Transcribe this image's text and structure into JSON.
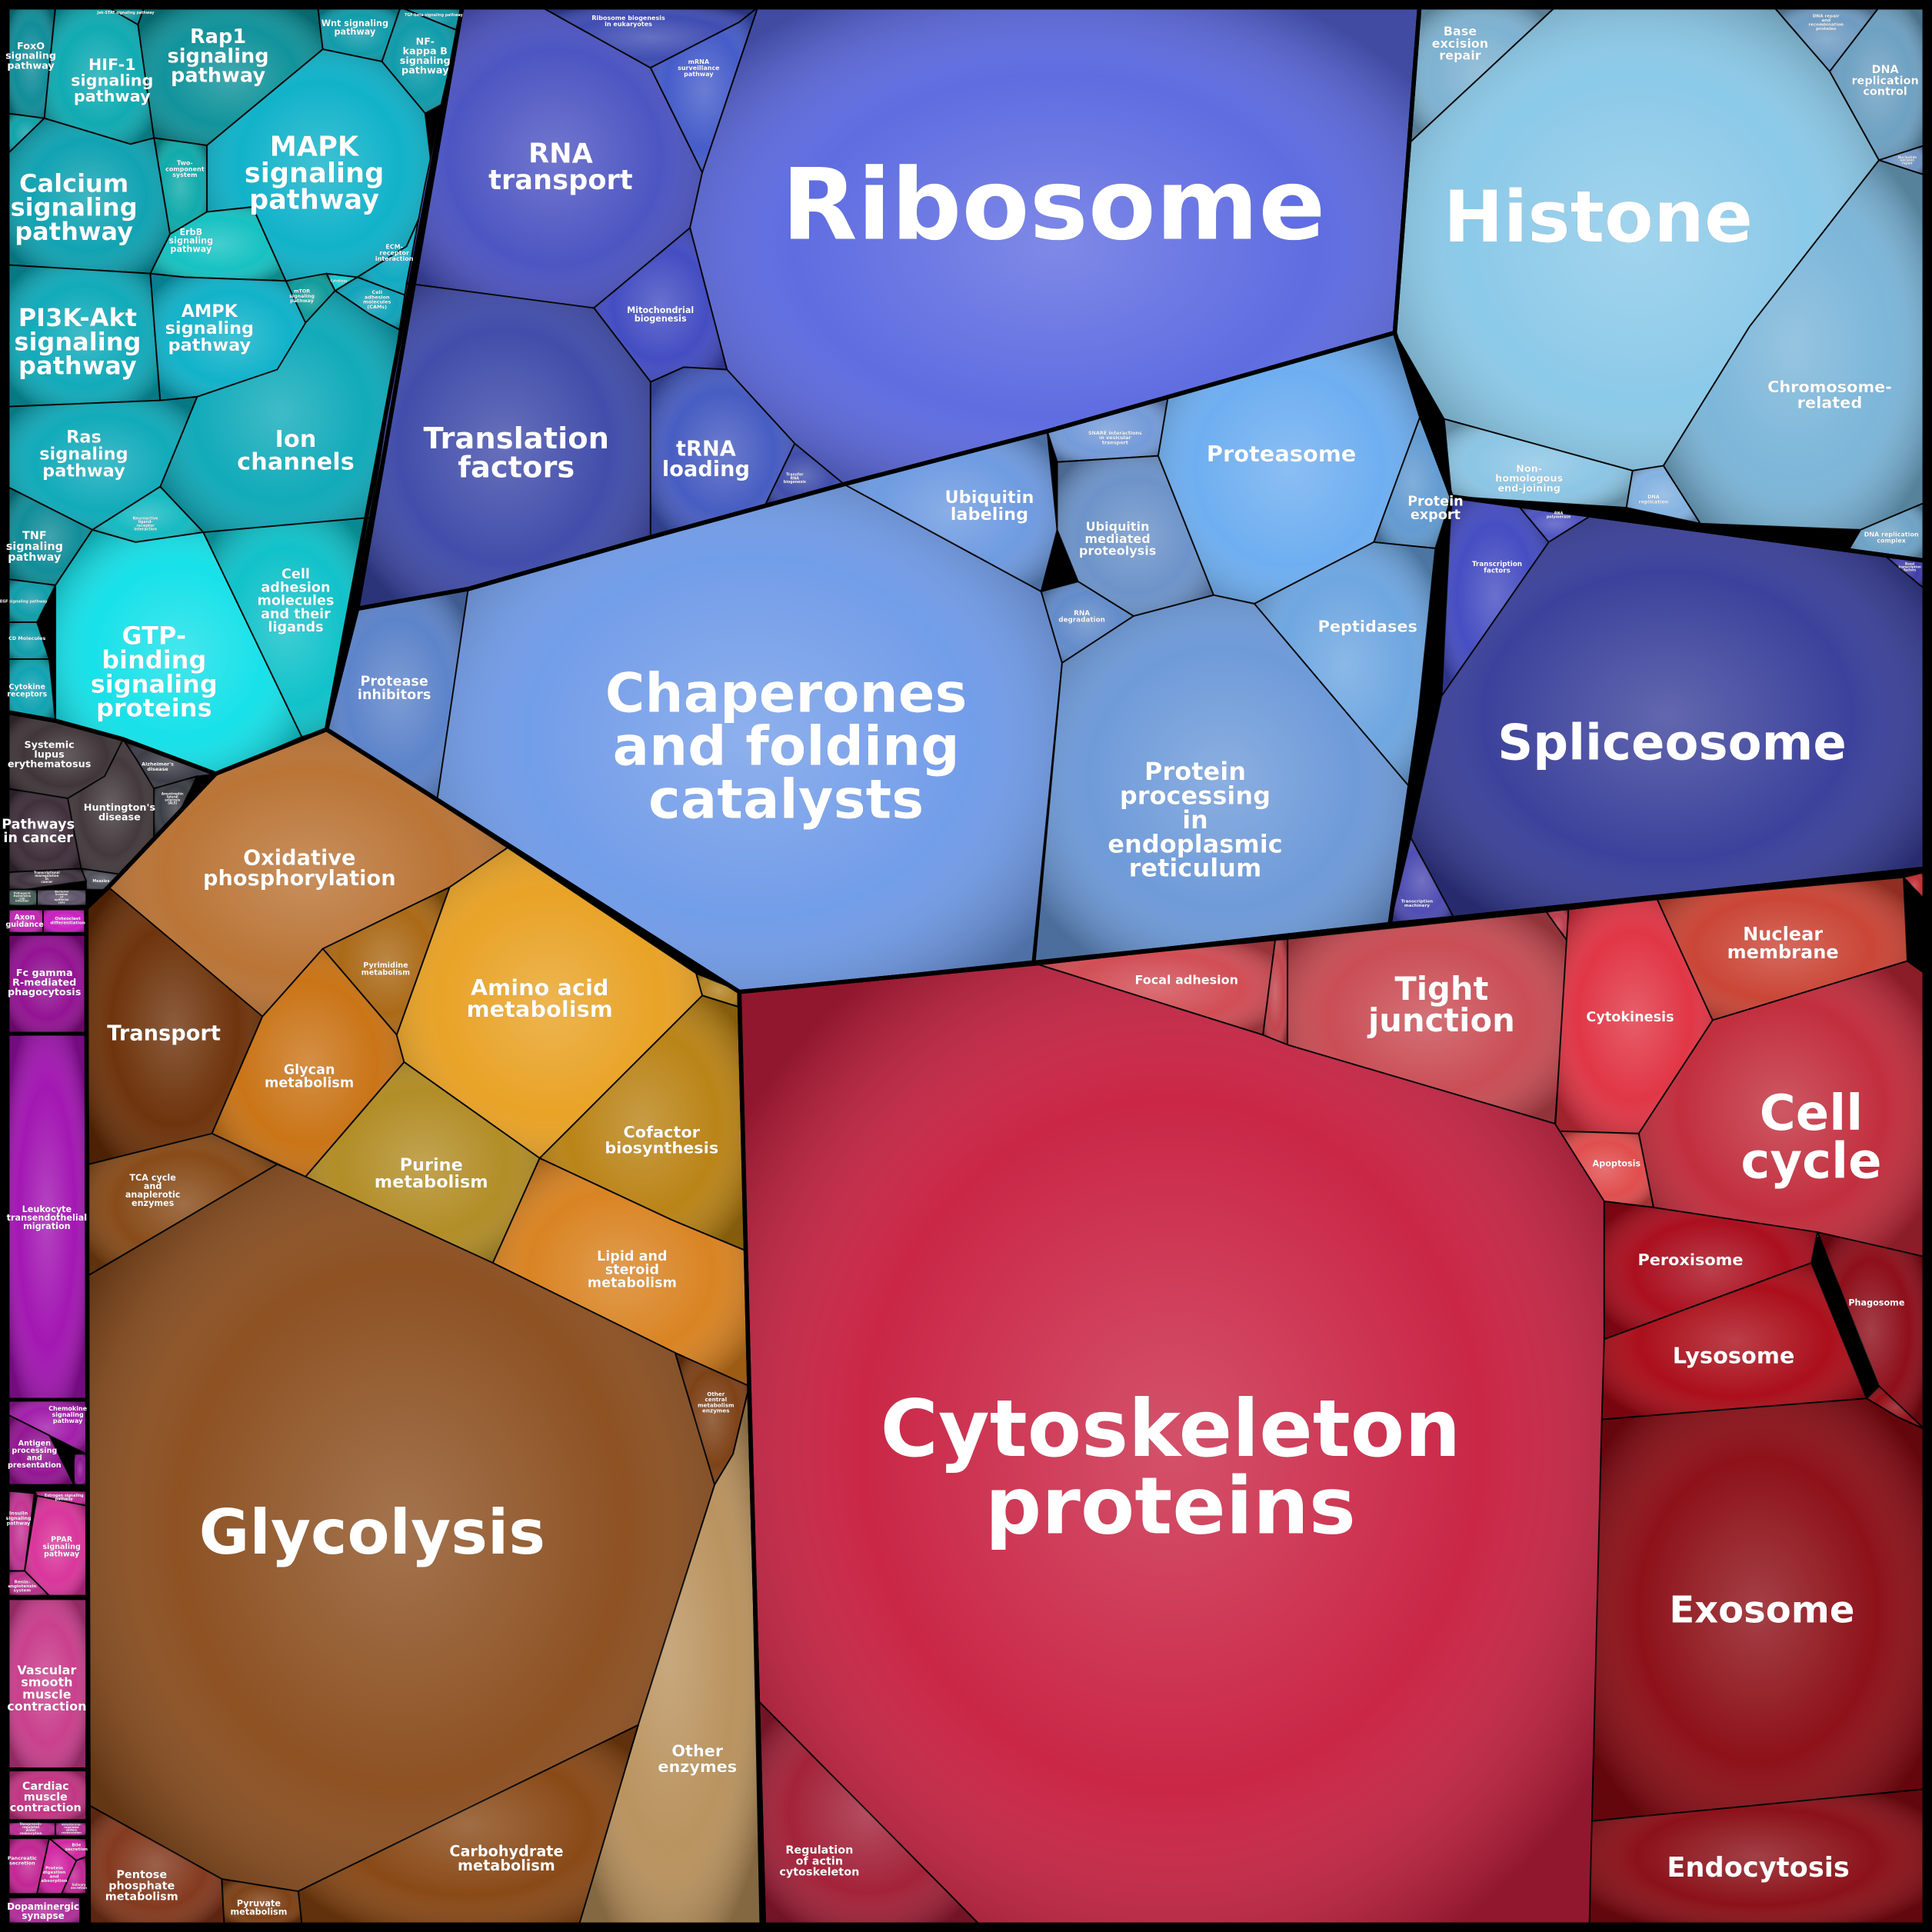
{
  "frame_color": "#000000",
  "cells": [
    {
      "label": "FoxO\nsignaling\npathway",
      "color": "#0a8a96"
    },
    {
      "label": "",
      "color": "#0aa0a8"
    },
    {
      "label": "HIF-1\nsignaling\npathway",
      "color": "#0aa8b0"
    },
    {
      "label": "Jak-STAT signaling pathway",
      "color": "#0a8a96"
    },
    {
      "label": "Rap1\nsignaling\npathway",
      "color": "#0a9098"
    },
    {
      "label": "Wnt signaling\npathway",
      "color": "#0a98a8"
    },
    {
      "label": "TGF-beta signaling pathway",
      "color": "#0a90a0"
    },
    {
      "label": "NF-\nkappa B\nsignaling\npathway",
      "color": "#0a98a8"
    },
    {
      "label": "Calcium\nsignaling\npathway",
      "color": "#0aa0b0"
    },
    {
      "label": "Two-\ncomponent\nsystem",
      "color": "#0aa8a8"
    },
    {
      "label": "MAPK\nsignaling\npathway",
      "color": "#0ab0c8"
    },
    {
      "label": "ErbB\nsignaling\npathway",
      "color": "#10c0c0"
    },
    {
      "label": "PI3K-Akt\nsignaling\npathway",
      "color": "#0aa8b8"
    },
    {
      "label": "AMPK\nsignaling\npathway",
      "color": "#0ab0c8"
    },
    {
      "label": "mTOR\nsignaling\npathway",
      "color": "#0a9898"
    },
    {
      "label": "Cytokines",
      "color": "#10c8d0"
    },
    {
      "label": "ECM-\nreceptor\ninteraction",
      "color": "#0aa8c0"
    },
    {
      "label": "Cell\nadhesion\nmolecules\n(CAMs)",
      "color": "#0aa0b8"
    },
    {
      "label": "Ion\nchannels",
      "color": "#0aa8b8"
    },
    {
      "label": "Ras\nsignaling\npathway",
      "color": "#0aa8b8"
    },
    {
      "label": "TNF\nsignaling\npathway",
      "color": "#0a8a96"
    },
    {
      "label": "Neuroactive ligand-receptor interaction",
      "color": "#10b8c0"
    },
    {
      "label": "GTP-\nbinding\nsignaling\nproteins",
      "color": "#10e0e8"
    },
    {
      "label": "Cell\nadhesion\nmolecules\nand their\nligands",
      "color": "#0ac0c8"
    },
    {
      "label": "VEGF signaling pathway",
      "color": "#0a9aa8"
    },
    {
      "label": "CD Molecules",
      "color": "#0a9aa8"
    },
    {
      "label": "Cytokine\nreceptors",
      "color": "#0aa0b0"
    },
    {
      "label": "Systemic\nlupus\nerythematosus",
      "color": "#3a3034"
    },
    {
      "label": "Pathways\nin cancer",
      "color": "#3a2a36"
    },
    {
      "label": "Huntington's\ndisease",
      "color": "#3e3438"
    },
    {
      "label": "Alzheimer's\ndisease",
      "color": "#383844"
    },
    {
      "label": "Amyotrophic lateral sclerosis (ALS)",
      "color": "#363a40"
    },
    {
      "label": "Transcriptional misregulation in cancer",
      "color": "#3a2e3a"
    },
    {
      "label": "Measles",
      "color": "#4a4a56"
    },
    {
      "label": "Bacterial invasion of epithelial cells",
      "color": "#5a5064"
    },
    {
      "label": "Pathogenic Escherichia coli infection",
      "color": "#445a55"
    },
    {
      "label": "Axon\nguidance",
      "color": "#c020b0"
    },
    {
      "label": "Osteoclast differentiation",
      "color": "#c818c0"
    },
    {
      "label": "Fc gamma\nR-mediated\nphagocytosis",
      "color": "#900c90"
    },
    {
      "label": "Leukocyte\ntransendothelial\nmigration",
      "color": "#a010b0"
    },
    {
      "label": "Chemokine\nsignaling\npathway",
      "color": "#a018a8"
    },
    {
      "label": "Antigen\nprocessing\nand\npresentation",
      "color": "#901090"
    },
    {
      "label": "",
      "color": "#8a1090"
    },
    {
      "label": "Insulin\nsignaling\npathway",
      "color": "#c03090"
    },
    {
      "label": "Estrogen signaling\npathway",
      "color": "#c02890"
    },
    {
      "label": "PPAR\nsignaling\npathway",
      "color": "#d83098"
    },
    {
      "label": "Renin-\nangiotensin\nsystem",
      "color": "#b82888"
    },
    {
      "label": "Vascular\nsmooth\nmuscle\ncontraction",
      "color": "#c83a8a"
    },
    {
      "label": "Cardiac\nmuscle\ncontraction",
      "color": "#c03080"
    },
    {
      "label": "Vasopressin-regulated\nwater reabsorption",
      "color": "#b82890"
    },
    {
      "label": "Aldosterone-regulated\nsodium reabsorption",
      "color": "#b02890"
    },
    {
      "label": "Pancreatic\nsecretion",
      "color": "#c02090"
    },
    {
      "label": "Protein\ndigestion\nand\nabsorption",
      "color": "#d020a0"
    },
    {
      "label": "Bile\nsecretion",
      "color": "#d020a0"
    },
    {
      "label": "Salivary\nsecretion",
      "color": "#c02090"
    },
    {
      "label": "Dopaminergic\nsynapse",
      "color": "#b02898"
    },
    {
      "label": "Oxidative\nphosphorylation",
      "color": "#b87030"
    },
    {
      "label": "Transport",
      "color": "#6a2e05"
    },
    {
      "label": "Pyrimidine\nmetabolism",
      "color": "#a86510"
    },
    {
      "label": "Glycan\nmetabolism",
      "color": "#c87010"
    },
    {
      "label": "Amino acid\nmetabolism",
      "color": "#e8a020"
    },
    {
      "label": "",
      "color": "#b08020"
    },
    {
      "label": "Cofactor\nbiosynthesis",
      "color": "#b88010"
    },
    {
      "label": "Purine\nmetabolism",
      "color": "#b08a20"
    },
    {
      "label": "Lipid and\nsteroid\nmetabolism",
      "color": "#d8801c"
    },
    {
      "label": "TCA cycle\nand\nanaplerotic\nenzymes",
      "color": "#844612"
    },
    {
      "label": "Glycolysis",
      "color": "#8a4c1c"
    },
    {
      "label": "Other\ncentral\nmetabolism\nenzymes",
      "color": "#7a3c10"
    },
    {
      "label": "Other\nenzymes",
      "color": "#b8905a"
    },
    {
      "label": "Carbohydrate\nmetabolism",
      "color": "#864410"
    },
    {
      "label": "Pentose\nphosphate\nmetabolism",
      "color": "#803418"
    },
    {
      "label": "Pyruvate\nmetabolism",
      "color": "#7a3c10"
    },
    {
      "label": "RNA\ntransport",
      "color": "#4850c0"
    },
    {
      "label": "Ribosome biogenesis\nin eukaryotes",
      "color": "#3a48b0"
    },
    {
      "label": "mRNA\nsurveillance\npathway",
      "color": "#4058c8"
    },
    {
      "label": "Ribosome",
      "color": "#5a68e0"
    },
    {
      "label": "Mitochondrial\nbiogenesis",
      "color": "#3e48c0"
    },
    {
      "label": "Translation\nfactors",
      "color": "#3c48a8"
    },
    {
      "label": "tRNA\nloading",
      "color": "#4258c0"
    },
    {
      "label": "Transfer\nRNA\nbiogenesis",
      "color": "#3a48a8"
    },
    {
      "label": "Transcription\nfactors",
      "color": "#4048c0"
    },
    {
      "label": "RNA\npolymerase",
      "color": "#4a50c0"
    },
    {
      "label": "Spliceosome",
      "color": "#363c98"
    },
    {
      "label": "Transcription\nmachinery",
      "color": "#4a48b0"
    },
    {
      "label": "Basal\ntranscription\nfactors",
      "color": "#3a38a8"
    },
    {
      "label": "Base\nexcision\nrepair",
      "color": "#7ab0d0"
    },
    {
      "label": "Histone",
      "color": "#88c8e8"
    },
    {
      "label": "DNA repair\nand\nrecombination\nproteins",
      "color": "#6a98c0"
    },
    {
      "label": "DNA\nreplication\ncontrol",
      "color": "#6a9ec0"
    },
    {
      "label": "Nucleotide\nexcision\nrepair",
      "color": "#6a90c0"
    },
    {
      "label": "Chromosome-\nrelated",
      "color": "#78b4d8"
    },
    {
      "label": "Non-\nhomologous\nend-joining",
      "color": "#88c4e4"
    },
    {
      "label": "DNA\nreplication",
      "color": "#80b0e0"
    },
    {
      "label": "DNA replication\ncomplex",
      "color": "#6aa0c4"
    },
    {
      "label": "Protease\ninhibitors",
      "color": "#5880c8"
    },
    {
      "label": "Chaperones\nand folding\ncatalysts",
      "color": "#6e9ae8"
    },
    {
      "label": "Ubiquitin\nlabeling",
      "color": "#6a98e0"
    },
    {
      "label": "SNARE interactions\nin vesicular\ntransport",
      "color": "#7098d8"
    },
    {
      "label": "Ubiquitin\nmediated\nproteolysis",
      "color": "#6890c8"
    },
    {
      "label": "RNA\ndegradation",
      "color": "#5e88c8"
    },
    {
      "label": "Proteasome",
      "color": "#6aacf0"
    },
    {
      "label": "Protein\nexport",
      "color": "#5e98d0"
    },
    {
      "label": "Peptidases",
      "color": "#6aa4e0"
    },
    {
      "label": "Protein\nprocessing\nin\nendoplasmic\nreticulum",
      "color": "#6a98d8"
    },
    {
      "label": "Focal adhesion",
      "color": "#d04850"
    },
    {
      "label": "",
      "color": "#c04048"
    },
    {
      "label": "Tight\njunction",
      "color": "#c84850"
    },
    {
      "label": "",
      "color": "#b83848"
    },
    {
      "label": "Cytokinesis",
      "color": "#e03040"
    },
    {
      "label": "Nuclear\nmembrane",
      "color": "#c84030"
    },
    {
      "label": "",
      "color": "#c02830"
    },
    {
      "label": "Cell\ncycle",
      "color": "#c02838"
    },
    {
      "label": "Apoptosis",
      "color": "#e04848"
    },
    {
      "label": "Cytoskeleton\nproteins",
      "color": "#c82040"
    },
    {
      "label": "Regulation\nof actin\ncytoskeleton",
      "color": "#a01c34"
    },
    {
      "label": "Peroxisome",
      "color": "#a80818"
    },
    {
      "label": "Phagosome",
      "color": "#8a0814"
    },
    {
      "label": "Lysosome",
      "color": "#a80814"
    },
    {
      "label": "",
      "color": "#900810"
    },
    {
      "label": "Exosome",
      "color": "#8a0a12"
    },
    {
      "label": "Endocytosis",
      "color": "#880a12"
    }
  ]
}
